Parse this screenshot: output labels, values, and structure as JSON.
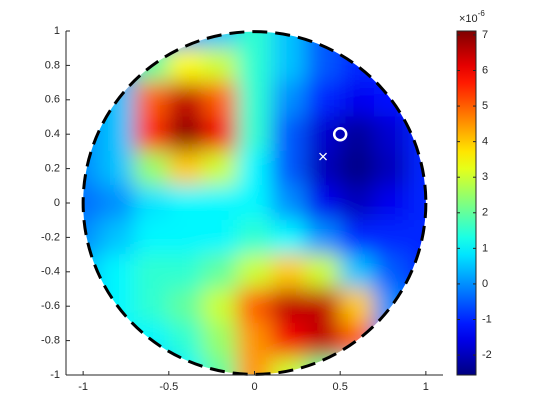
{
  "chart_data": {
    "type": "heatmap",
    "x": [
      -1,
      -0.8,
      -0.6,
      -0.4,
      -0.2,
      0,
      0.2,
      0.4,
      0.6,
      0.8,
      1
    ],
    "y": [
      1,
      0.8,
      0.6,
      0.4,
      0.2,
      0,
      -0.2,
      -0.4,
      -0.6,
      -0.8,
      -1
    ],
    "z": [
      [
        0,
        0,
        0,
        0,
        0.5,
        1.5,
        0.5,
        -0.5,
        -1,
        -1,
        -1
      ],
      [
        0,
        0,
        2,
        3.5,
        3,
        1.5,
        0.5,
        -0.5,
        -1,
        -1,
        -1
      ],
      [
        0,
        0.5,
        5,
        6.5,
        5,
        1.5,
        0,
        -1,
        -1.5,
        -1.2,
        -1
      ],
      [
        0,
        0.5,
        5.5,
        7,
        6,
        1.5,
        -0.5,
        -1.8,
        -2.3,
        -1.8,
        -1
      ],
      [
        0,
        0.5,
        2.5,
        4,
        3,
        1,
        -0.5,
        -2,
        -2.5,
        -2,
        -1
      ],
      [
        -0.3,
        0,
        0.8,
        1,
        1,
        1,
        0,
        -1.5,
        -2,
        -1.5,
        -1
      ],
      [
        0,
        0.5,
        1,
        1,
        1,
        1.5,
        1,
        0,
        -1,
        -1,
        -1
      ],
      [
        0.5,
        1,
        1.5,
        1.5,
        2,
        3,
        4,
        3,
        0.5,
        -0.5,
        -1
      ],
      [
        0.5,
        1,
        1.5,
        2,
        3,
        5,
        6.5,
        6.5,
        4,
        0,
        -1
      ],
      [
        0.5,
        1,
        1,
        1.5,
        2.5,
        4.5,
        6,
        6.5,
        5,
        0,
        0
      ],
      [
        0,
        0,
        0,
        1,
        2,
        4.5,
        3,
        2,
        1,
        0,
        0
      ]
    ],
    "boundary_radius": 1,
    "xlim": [
      -1.1,
      1.1
    ],
    "ylim": [
      -1,
      1
    ],
    "xticks": [
      -1,
      -0.5,
      0,
      0.5,
      1
    ],
    "yticks": [
      -1,
      -0.8,
      -0.6,
      -0.4,
      -0.2,
      0,
      0.2,
      0.4,
      0.6,
      0.8,
      1
    ],
    "colormap": "jet",
    "clim": [
      -2.56,
      7.11
    ],
    "colorbar_ticks": [
      -2,
      -1,
      0,
      1,
      2,
      3,
      4,
      5,
      6,
      7
    ],
    "colorbar_multiplier_label": "×10",
    "colorbar_exponent": -6,
    "markers": [
      {
        "symbol": "o",
        "color": "#ffffff",
        "x": 0.5,
        "y": 0.4
      },
      {
        "symbol": "x",
        "color": "#ffffff",
        "x": 0.4,
        "y": 0.27
      }
    ]
  }
}
